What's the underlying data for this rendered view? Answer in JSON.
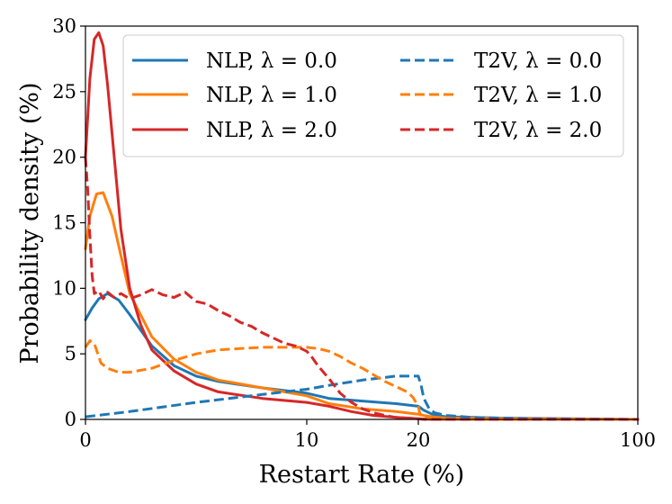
{
  "chart_data": {
    "type": "line",
    "xlabel": "Restart Rate (%)",
    "ylabel": "Probability density (%)",
    "xlim": [
      0,
      100
    ],
    "ylim": [
      0,
      30
    ],
    "x_ticks": [
      {
        "value": 0,
        "label": "0"
      },
      {
        "value": 10,
        "label": "10"
      },
      {
        "value": 20,
        "label": "20"
      },
      {
        "value": 100,
        "label": "100"
      }
    ],
    "y_ticks": [
      {
        "value": 0,
        "label": "0"
      },
      {
        "value": 5,
        "label": "5"
      },
      {
        "value": 10,
        "label": "10"
      },
      {
        "value": 15,
        "label": "15"
      },
      {
        "value": 20,
        "label": "20"
      },
      {
        "value": 25,
        "label": "25"
      },
      {
        "value": 30,
        "label": "30"
      }
    ],
    "grid": false,
    "legend_position": "top",
    "series": [
      {
        "name": "NLP, λ = 0.0",
        "color": "#1f77b4",
        "style": "solid",
        "x": [
          0,
          0.3,
          0.6,
          1.0,
          1.5,
          2.0,
          3.0,
          4.0,
          5.0,
          6.0,
          8.0,
          10.0,
          12.0,
          15.0,
          18.0,
          20.0,
          22.0,
          25.0,
          30.0,
          50.0,
          100.0
        ],
        "y": [
          7.6,
          8.5,
          9.2,
          9.6,
          9.1,
          8.0,
          5.6,
          4.1,
          3.3,
          2.9,
          2.4,
          2.0,
          1.6,
          1.4,
          1.2,
          1.0,
          0.7,
          0.4,
          0.2,
          0.1,
          0.0
        ]
      },
      {
        "name": "NLP, λ = 1.0",
        "color": "#ff7f0e",
        "style": "solid",
        "x": [
          0,
          0.2,
          0.5,
          0.8,
          1.2,
          1.6,
          2.0,
          3.0,
          4.0,
          5.0,
          6.0,
          8.0,
          10.0,
          12.0,
          15.0,
          18.0,
          20.0,
          22.0,
          25.0,
          30.0,
          100.0
        ],
        "y": [
          13.0,
          15.5,
          17.2,
          17.3,
          15.5,
          12.5,
          9.6,
          6.3,
          4.6,
          3.6,
          3.0,
          2.4,
          1.8,
          1.2,
          0.8,
          0.6,
          0.4,
          0.3,
          0.2,
          0.1,
          0.0
        ]
      },
      {
        "name": "NLP, λ = 2.0",
        "color": "#d62728",
        "style": "solid",
        "x": [
          0,
          0.2,
          0.4,
          0.6,
          0.8,
          1.0,
          1.3,
          1.6,
          2.0,
          2.5,
          3.0,
          4.0,
          5.0,
          6.0,
          8.0,
          10.0,
          12.0,
          14.0,
          16.0,
          18.0,
          20.0,
          25.0,
          30.0,
          100.0
        ],
        "y": [
          20.0,
          26.0,
          29.0,
          29.5,
          28.5,
          25.5,
          20.0,
          14.5,
          10.0,
          7.2,
          5.3,
          3.7,
          2.7,
          2.1,
          1.6,
          1.3,
          1.0,
          0.6,
          0.3,
          0.15,
          0.05,
          0.0,
          0.0,
          0.0
        ]
      },
      {
        "name": "T2V, λ = 0.0",
        "color": "#1f77b4",
        "style": "dashed",
        "x": [
          0,
          2.0,
          5.0,
          8.0,
          10.0,
          12.0,
          15.0,
          18.0,
          20.0,
          21.0,
          22.0,
          24.0,
          26.0,
          30.0,
          40.0,
          60.0,
          80.0,
          100.0
        ],
        "y": [
          0.2,
          0.6,
          1.3,
          1.9,
          2.3,
          2.6,
          3.0,
          3.3,
          3.3,
          2.6,
          1.6,
          0.8,
          0.5,
          0.3,
          0.15,
          0.05,
          0.02,
          0.0
        ]
      },
      {
        "name": "T2V, λ = 1.0",
        "color": "#ff7f0e",
        "style": "dashed",
        "x": [
          0,
          0.2,
          0.4,
          0.7,
          1.0,
          1.5,
          2.0,
          3.0,
          4.0,
          5.0,
          6.0,
          7.0,
          8.0,
          9.0,
          10.0,
          11.0,
          12.0,
          13.0,
          14.0,
          15.0,
          16.0,
          17.0,
          18.0,
          19.0,
          19.5,
          20.0,
          20.5,
          21.0,
          22.0,
          24.0,
          30.0,
          100.0
        ],
        "y": [
          5.5,
          6.0,
          5.8,
          4.3,
          3.9,
          3.6,
          3.6,
          3.9,
          4.5,
          5.0,
          5.3,
          5.4,
          5.5,
          5.5,
          5.5,
          5.4,
          5.2,
          4.8,
          4.3,
          3.9,
          3.4,
          2.9,
          2.5,
          2.1,
          1.7,
          1.0,
          0.5,
          0.3,
          0.15,
          0.05,
          0.0,
          0.0
        ]
      },
      {
        "name": "T2V, λ = 2.0",
        "color": "#d62728",
        "style": "dashed",
        "x": [
          0,
          0.1,
          0.2,
          0.3,
          0.4,
          0.6,
          0.8,
          1.0,
          1.3,
          1.6,
          2.0,
          2.5,
          3.0,
          3.5,
          4.0,
          4.5,
          5.0,
          5.5,
          6.0,
          6.5,
          7.0,
          7.5,
          8.0,
          8.5,
          9.0,
          9.5,
          10.0,
          10.5,
          11.0,
          12.0,
          13.0,
          14.0,
          15.0,
          16.0,
          17.0,
          18.0,
          20.0,
          22.0,
          30.0,
          100.0
        ],
        "y": [
          20.0,
          17.5,
          14.0,
          11.0,
          9.6,
          9.8,
          9.2,
          9.7,
          9.3,
          9.6,
          9.2,
          9.5,
          9.9,
          9.5,
          9.3,
          9.7,
          9.0,
          8.8,
          8.3,
          7.9,
          7.4,
          7.1,
          6.6,
          6.2,
          5.8,
          5.6,
          5.2,
          4.7,
          4.1,
          3.1,
          2.0,
          1.3,
          0.8,
          0.5,
          0.3,
          0.15,
          0.05,
          0.0,
          0.0,
          0.0
        ]
      }
    ]
  }
}
